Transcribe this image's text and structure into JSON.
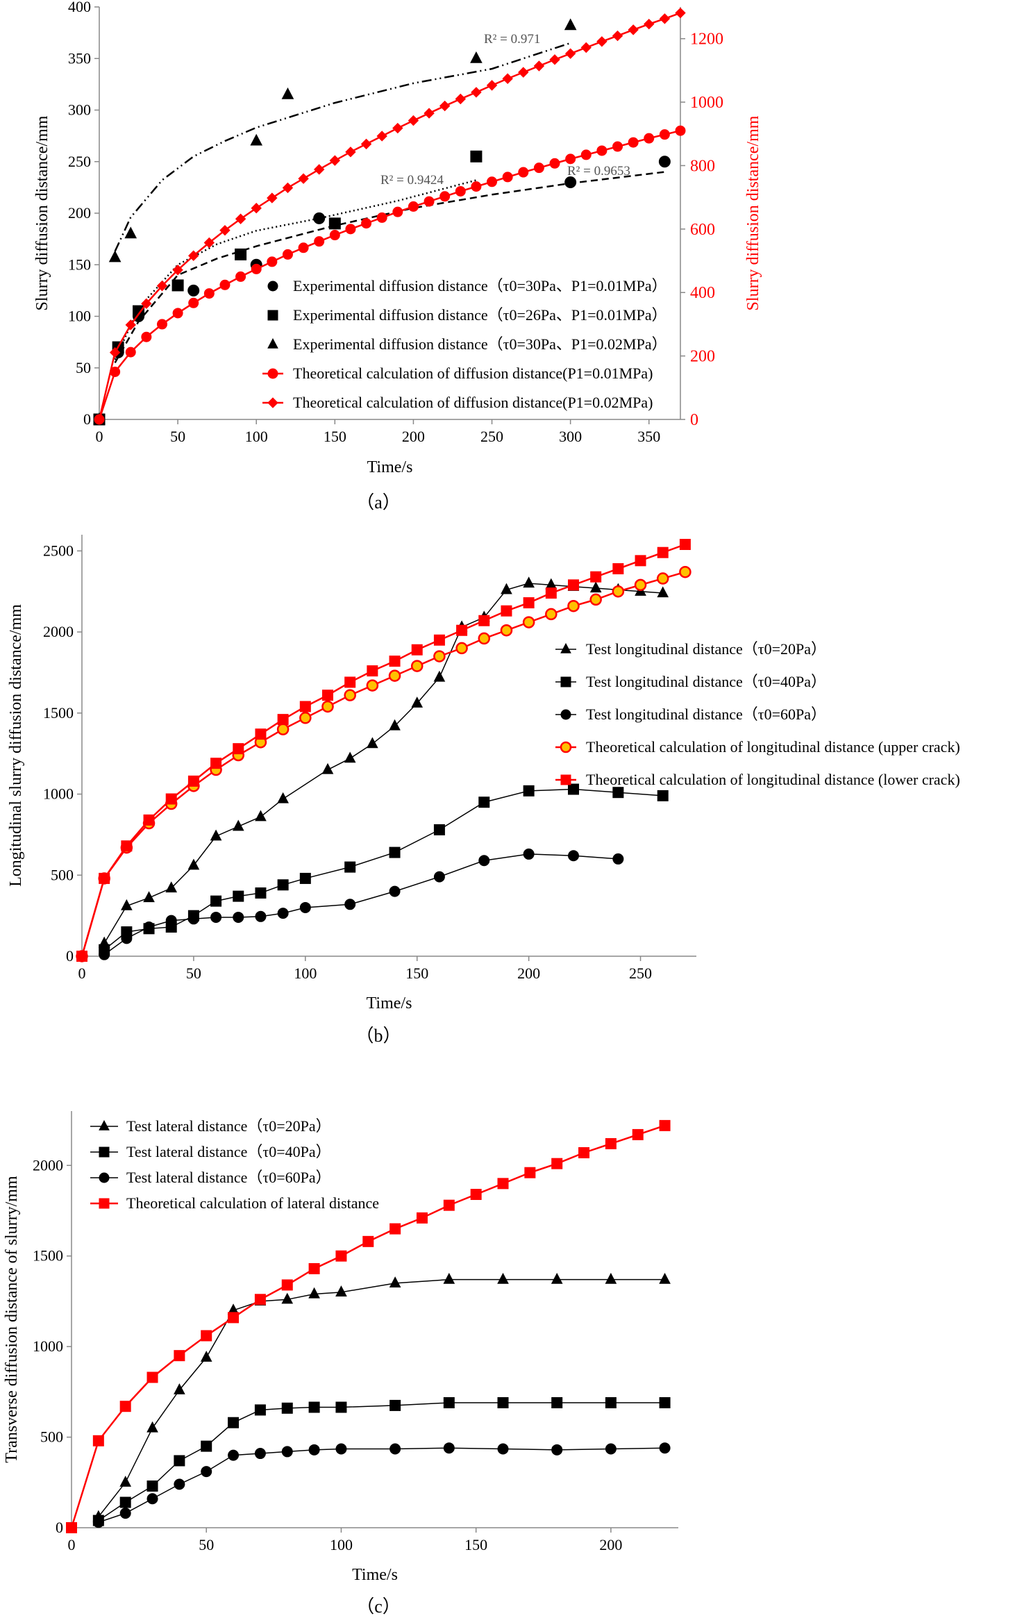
{
  "chart_data": [
    {
      "type": "line",
      "caption": "（a）",
      "xlabel": "Time/s",
      "ylabel": "Slurry diffusion distance/mm",
      "ylabel_right": "Slurry diffusion distance/mm",
      "xlim": [
        0,
        370
      ],
      "ylim": [
        0,
        400
      ],
      "ylim_right": [
        0,
        1300
      ],
      "xticks": [
        "0",
        "50",
        "100",
        "150",
        "200",
        "250",
        "300",
        "350"
      ],
      "yticks": [
        "0",
        "50",
        "100",
        "150",
        "200",
        "250",
        "300",
        "350",
        "400"
      ],
      "yticks_right": [
        "0",
        "200",
        "400",
        "600",
        "800",
        "1000",
        "1200"
      ],
      "colors": {
        "theory": "#ff0000",
        "experiment": "#000000"
      },
      "series": [
        {
          "name": "Experimental diffusion distance（τ0=30Pa、P1=0.01MPa）",
          "marker": "circle",
          "axis": "left",
          "x": [
            0,
            12,
            25,
            60,
            100,
            140,
            300,
            360
          ],
          "y": [
            0,
            65,
            100,
            125,
            150,
            195,
            230,
            250
          ]
        },
        {
          "name": "Experimental diffusion distance（τ0=26Pa、P1=0.01MPa）",
          "marker": "square",
          "axis": "left",
          "x": [
            0,
            12,
            25,
            50,
            90,
            150,
            240
          ],
          "y": [
            0,
            70,
            105,
            130,
            160,
            190,
            255
          ]
        },
        {
          "name": "Experimental diffusion distance（τ0=30Pa、P1=0.02MPa）",
          "marker": "triangle",
          "axis": "left",
          "x": [
            0,
            10,
            20,
            100,
            120,
            240,
            300
          ],
          "y": [
            0,
            157,
            180,
            270,
            315,
            350,
            382
          ]
        },
        {
          "name": "Theoretical calculation of diffusion distance(P1=0.01MPa)",
          "marker": "circle",
          "color": "#ff0000",
          "axis": "right",
          "x": [
            0,
            10,
            20,
            30,
            40,
            50,
            60,
            70,
            80,
            90,
            100,
            110,
            120,
            130,
            140,
            150,
            160,
            170,
            180,
            190,
            200,
            210,
            220,
            230,
            240,
            250,
            260,
            270,
            280,
            290,
            300,
            310,
            320,
            330,
            340,
            350,
            360,
            370
          ],
          "y": [
            0,
            150,
            212,
            260,
            300,
            335,
            367,
            397,
            424,
            450,
            474,
            497,
            520,
            541,
            561,
            581,
            600,
            618,
            636,
            654,
            671,
            687,
            703,
            719,
            734,
            749,
            764,
            779,
            793,
            807,
            821,
            834,
            847,
            860,
            873,
            886,
            898,
            910
          ]
        },
        {
          "name": "Theoretical calculation of diffusion distance(P1=0.02MPa)",
          "marker": "diamond",
          "color": "#ff0000",
          "axis": "right",
          "x": [
            0,
            10,
            20,
            30,
            40,
            50,
            60,
            70,
            80,
            90,
            100,
            110,
            120,
            130,
            140,
            150,
            160,
            170,
            180,
            190,
            200,
            210,
            220,
            230,
            240,
            250,
            260,
            270,
            280,
            290,
            300,
            310,
            320,
            330,
            340,
            350,
            360,
            370
          ],
          "y": [
            0,
            211,
            298,
            365,
            421,
            471,
            516,
            557,
            596,
            632,
            666,
            698,
            730,
            759,
            788,
            816,
            843,
            868,
            893,
            918,
            942,
            965,
            988,
            1010,
            1031,
            1053,
            1074,
            1094,
            1114,
            1134,
            1153,
            1172,
            1191,
            1209,
            1228,
            1246,
            1263,
            1281
          ]
        }
      ],
      "trendlines": [
        {
          "label": "R² = 0.971",
          "style": "dash-dot-dot",
          "x0": 10,
          "x1": 300,
          "points": [
            [
              10,
              163
            ],
            [
              20,
              196
            ],
            [
              40,
              232
            ],
            [
              60,
              255
            ],
            [
              80,
              270
            ],
            [
              100,
              283
            ],
            [
              150,
              307
            ],
            [
              200,
              326
            ],
            [
              250,
              340
            ],
            [
              300,
              365
            ]
          ]
        },
        {
          "label": "R² = 0.9424",
          "style": "dotted",
          "x0": 10,
          "x1": 240,
          "points": [
            [
              10,
              58
            ],
            [
              25,
              108
            ],
            [
              50,
              150
            ],
            [
              75,
              170
            ],
            [
              100,
              183
            ],
            [
              140,
              195
            ],
            [
              190,
              212
            ],
            [
              240,
              232
            ]
          ]
        },
        {
          "label": "R² = 0.9653",
          "style": "dashed",
          "x0": 10,
          "x1": 360,
          "points": [
            [
              10,
              55
            ],
            [
              25,
              95
            ],
            [
              50,
              140
            ],
            [
              75,
              156
            ],
            [
              100,
              168
            ],
            [
              150,
              188
            ],
            [
              200,
              205
            ],
            [
              250,
              218
            ],
            [
              300,
              229
            ],
            [
              360,
              240
            ]
          ]
        }
      ]
    },
    {
      "type": "line",
      "caption": "（b）",
      "xlabel": "Time/s",
      "ylabel": "Longitudinal slurry diffusion distance/mm",
      "xlim": [
        0,
        275
      ],
      "ylim": [
        0,
        2600
      ],
      "xticks": [
        "0",
        "50",
        "100",
        "150",
        "200",
        "250"
      ],
      "yticks": [
        "0",
        "500",
        "1000",
        "1500",
        "2000",
        "2500"
      ],
      "series": [
        {
          "name": "Test longitudinal distance（τ0=20Pa）",
          "marker": "triangle",
          "x": [
            10,
            20,
            30,
            40,
            50,
            60,
            70,
            80,
            90,
            110,
            120,
            130,
            140,
            150,
            160,
            170,
            180,
            190,
            200,
            210,
            220,
            230,
            240,
            250,
            260
          ],
          "y": [
            80,
            310,
            360,
            420,
            560,
            740,
            800,
            860,
            970,
            1150,
            1220,
            1310,
            1420,
            1560,
            1720,
            2030,
            2090,
            2260,
            2300,
            2290,
            2280,
            2270,
            2260,
            2250,
            2240
          ]
        },
        {
          "name": "Test longitudinal distance（τ0=40Pa）",
          "marker": "square",
          "x": [
            10,
            20,
            30,
            40,
            50,
            60,
            70,
            80,
            90,
            100,
            120,
            140,
            160,
            180,
            200,
            220,
            240,
            260
          ],
          "y": [
            40,
            150,
            170,
            180,
            250,
            340,
            370,
            390,
            440,
            480,
            550,
            640,
            780,
            950,
            1020,
            1030,
            1010,
            990
          ]
        },
        {
          "name": "Test longitudinal distance（τ0=60Pa）",
          "marker": "circle",
          "x": [
            10,
            20,
            30,
            40,
            50,
            60,
            70,
            80,
            90,
            100,
            120,
            140,
            160,
            180,
            200,
            220,
            240
          ],
          "y": [
            10,
            110,
            180,
            220,
            230,
            240,
            240,
            245,
            265,
            300,
            320,
            400,
            490,
            590,
            630,
            620,
            600
          ]
        },
        {
          "name": "Theoretical calculation of longitudinal distance (upper crack)",
          "marker": "circle-filled-gold",
          "color": "#ff0000",
          "x": [
            0,
            10,
            20,
            30,
            40,
            50,
            60,
            70,
            80,
            90,
            100,
            110,
            120,
            130,
            140,
            150,
            160,
            170,
            180,
            190,
            200,
            210,
            220,
            230,
            240,
            250,
            260,
            270
          ],
          "y": [
            0,
            480,
            670,
            820,
            940,
            1050,
            1150,
            1240,
            1320,
            1400,
            1470,
            1540,
            1610,
            1670,
            1730,
            1790,
            1850,
            1900,
            1960,
            2010,
            2060,
            2110,
            2160,
            2200,
            2250,
            2290,
            2330,
            2370
          ]
        },
        {
          "name": "Theoretical calculation of longitudinal distance (lower crack)",
          "marker": "square",
          "color": "#ff0000",
          "x": [
            0,
            10,
            20,
            30,
            40,
            50,
            60,
            70,
            80,
            90,
            100,
            110,
            120,
            130,
            140,
            150,
            160,
            170,
            180,
            190,
            200,
            210,
            220,
            230,
            240,
            250,
            260,
            270
          ],
          "y": [
            0,
            480,
            680,
            840,
            970,
            1080,
            1190,
            1280,
            1370,
            1460,
            1540,
            1610,
            1690,
            1760,
            1820,
            1890,
            1950,
            2010,
            2070,
            2130,
            2180,
            2240,
            2290,
            2340,
            2390,
            2440,
            2490,
            2540
          ]
        }
      ]
    },
    {
      "type": "line",
      "caption": "（c）",
      "xlabel": "Time/s",
      "ylabel": "Transverse diffusion distance of slurry/mm",
      "xlim": [
        0,
        225
      ],
      "ylim": [
        0,
        2300
      ],
      "xticks": [
        "0",
        "50",
        "100",
        "150",
        "200"
      ],
      "yticks": [
        "0",
        "500",
        "1000",
        "1500",
        "2000"
      ],
      "series": [
        {
          "name": "Test lateral distance（τ0=20Pa）",
          "marker": "triangle",
          "x": [
            10,
            20,
            30,
            40,
            50,
            60,
            70,
            80,
            90,
            100,
            120,
            140,
            160,
            180,
            200,
            220
          ],
          "y": [
            60,
            250,
            550,
            760,
            940,
            1200,
            1250,
            1260,
            1290,
            1300,
            1350,
            1370,
            1370,
            1370,
            1370,
            1370
          ]
        },
        {
          "name": "Test lateral distance（τ0=40Pa）",
          "marker": "square",
          "x": [
            10,
            20,
            30,
            40,
            50,
            60,
            70,
            80,
            90,
            100,
            120,
            140,
            160,
            180,
            200,
            220
          ],
          "y": [
            40,
            140,
            230,
            370,
            450,
            580,
            650,
            660,
            665,
            665,
            675,
            690,
            690,
            690,
            690,
            690
          ]
        },
        {
          "name": "Test lateral distance（τ0=60Pa）",
          "marker": "circle",
          "x": [
            10,
            20,
            30,
            40,
            50,
            60,
            70,
            80,
            90,
            100,
            120,
            140,
            160,
            180,
            200,
            220
          ],
          "y": [
            30,
            80,
            160,
            240,
            310,
            400,
            410,
            420,
            430,
            435,
            435,
            440,
            435,
            430,
            435,
            440
          ]
        },
        {
          "name": "Theoretical calculation of lateral distance",
          "marker": "square",
          "color": "#ff0000",
          "x": [
            0,
            10,
            20,
            30,
            40,
            50,
            60,
            70,
            80,
            90,
            100,
            110,
            120,
            130,
            140,
            150,
            160,
            170,
            180,
            190,
            200,
            210,
            220
          ],
          "y": [
            0,
            480,
            670,
            830,
            950,
            1060,
            1160,
            1260,
            1340,
            1430,
            1500,
            1580,
            1650,
            1710,
            1780,
            1840,
            1900,
            1960,
            2010,
            2070,
            2120,
            2170,
            2220
          ]
        }
      ]
    }
  ]
}
